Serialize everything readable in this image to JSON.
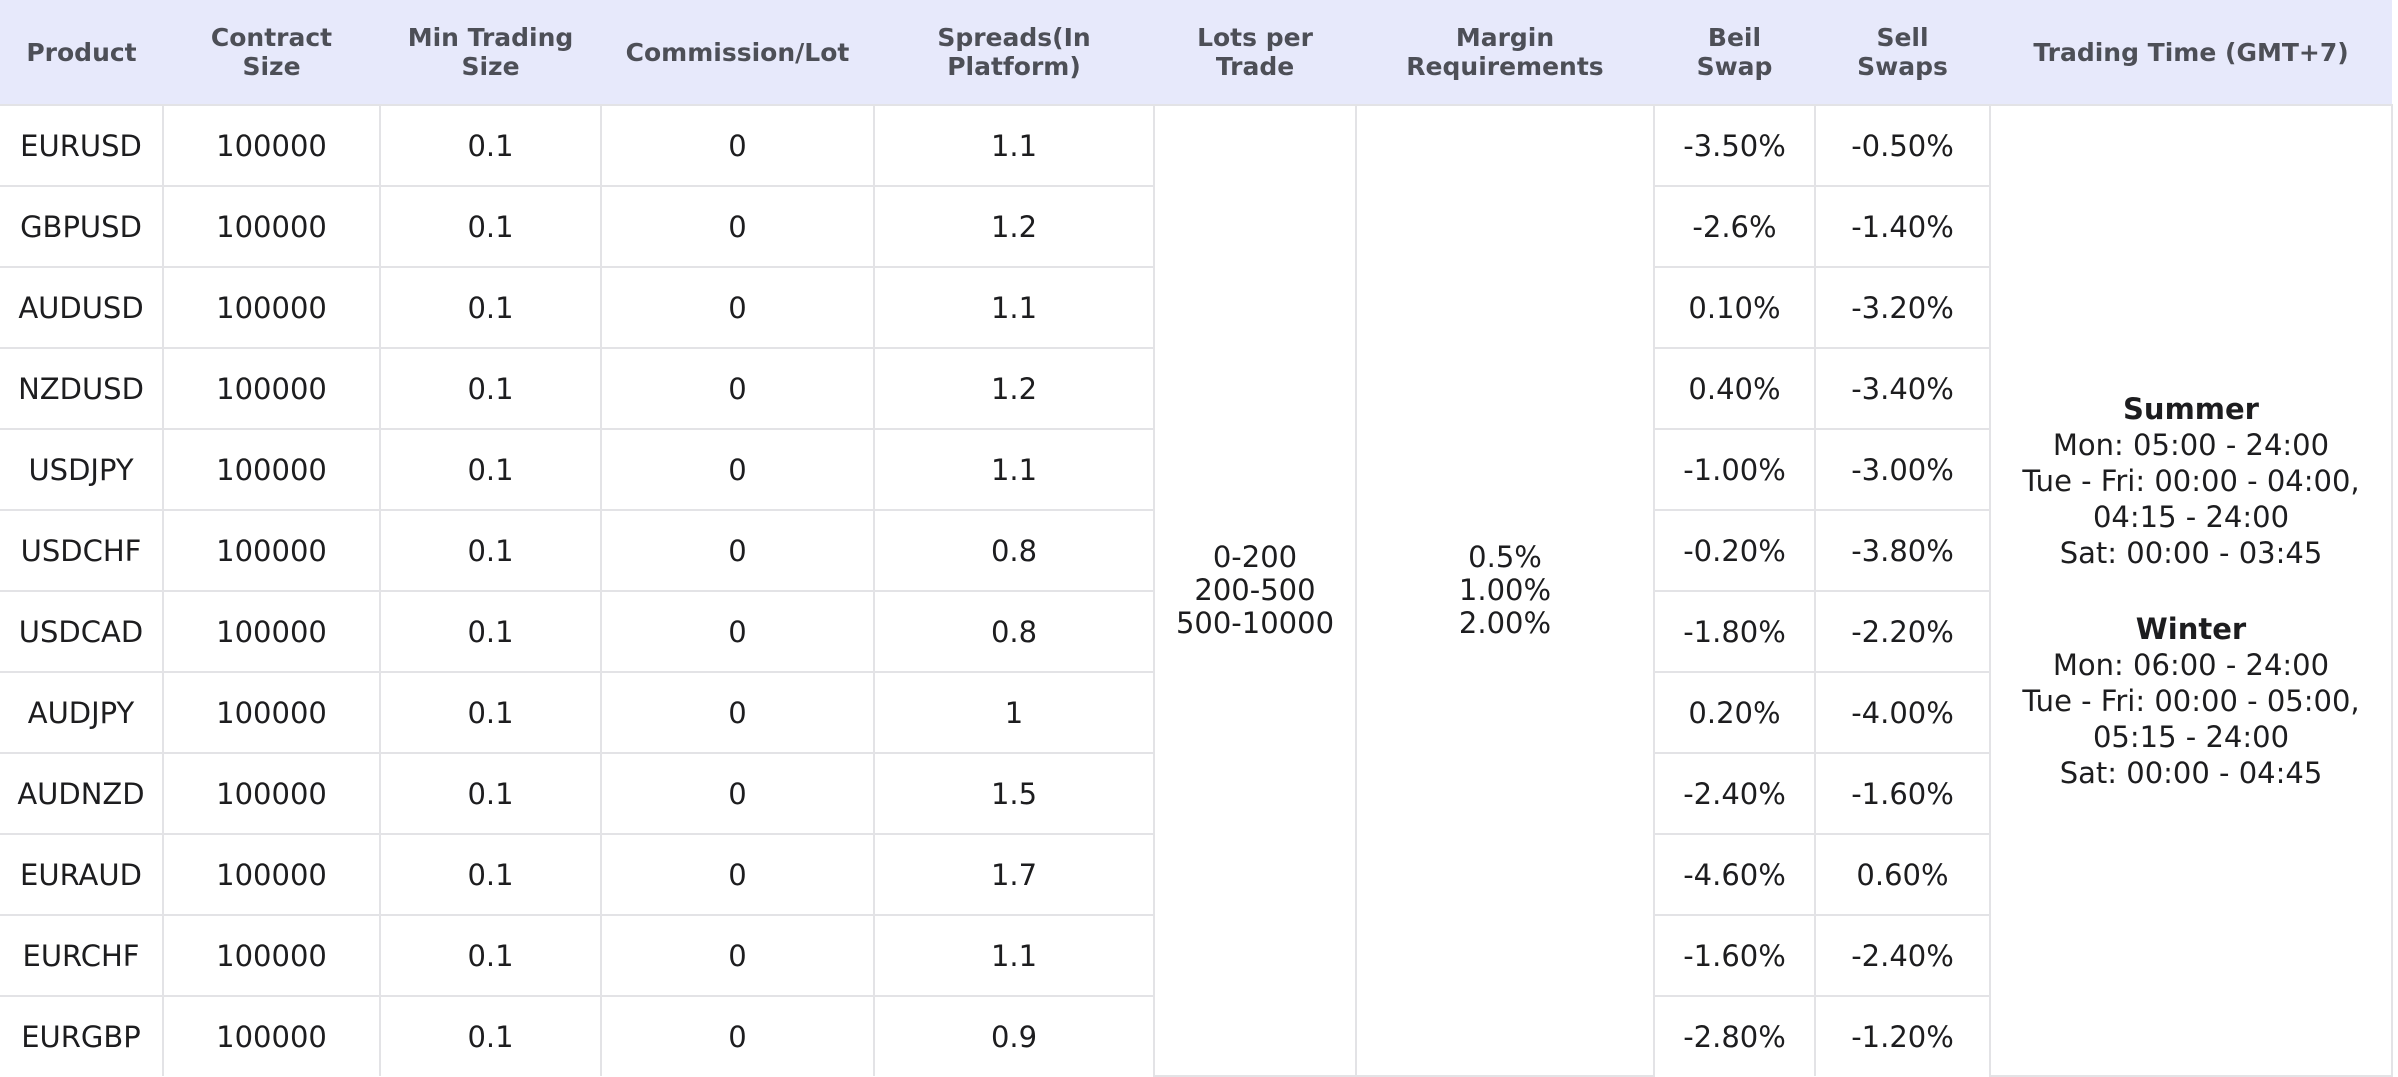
{
  "table": {
    "headers": [
      {
        "line1": "Product",
        "line2": ""
      },
      {
        "line1": "Contract",
        "line2": "Size"
      },
      {
        "line1": "Min Trading",
        "line2": "Size"
      },
      {
        "line1": "Commission/Lot",
        "line2": ""
      },
      {
        "line1": "Spreads(In",
        "line2": "Platform)"
      },
      {
        "line1": "Lots per",
        "line2": "Trade"
      },
      {
        "line1": "Margin",
        "line2": "Requirements"
      },
      {
        "line1": "Beil",
        "line2": "Swap"
      },
      {
        "line1": "Sell",
        "line2": "Swaps"
      },
      {
        "line1": "Trading Time (GMT+7)",
        "line2": ""
      }
    ],
    "rows": [
      {
        "product": "EURUSD",
        "contract": "100000",
        "min": "0.1",
        "commission": "0",
        "spread": "1.1",
        "buy_swap": "-3.50%",
        "sell_swap": "-0.50%"
      },
      {
        "product": "GBPUSD",
        "contract": "100000",
        "min": "0.1",
        "commission": "0",
        "spread": "1.2",
        "buy_swap": "-2.6%",
        "sell_swap": "-1.40%"
      },
      {
        "product": "AUDUSD",
        "contract": "100000",
        "min": "0.1",
        "commission": "0",
        "spread": "1.1",
        "buy_swap": "0.10%",
        "sell_swap": "-3.20%"
      },
      {
        "product": "NZDUSD",
        "contract": "100000",
        "min": "0.1",
        "commission": "0",
        "spread": "1.2",
        "buy_swap": "0.40%",
        "sell_swap": "-3.40%"
      },
      {
        "product": "USDJPY",
        "contract": "100000",
        "min": "0.1",
        "commission": "0",
        "spread": "1.1",
        "buy_swap": "-1.00%",
        "sell_swap": "-3.00%"
      },
      {
        "product": "USDCHF",
        "contract": "100000",
        "min": "0.1",
        "commission": "0",
        "spread": "0.8",
        "buy_swap": "-0.20%",
        "sell_swap": "-3.80%"
      },
      {
        "product": "USDCAD",
        "contract": "100000",
        "min": "0.1",
        "commission": "0",
        "spread": "0.8",
        "buy_swap": "-1.80%",
        "sell_swap": "-2.20%"
      },
      {
        "product": "AUDJPY",
        "contract": "100000",
        "min": "0.1",
        "commission": "0",
        "spread": "1",
        "buy_swap": "0.20%",
        "sell_swap": "-4.00%"
      },
      {
        "product": "AUDNZD",
        "contract": "100000",
        "min": "0.1",
        "commission": "0",
        "spread": "1.5",
        "buy_swap": "-2.40%",
        "sell_swap": "-1.60%"
      },
      {
        "product": "EURAUD",
        "contract": "100000",
        "min": "0.1",
        "commission": "0",
        "spread": "1.7",
        "buy_swap": "-4.60%",
        "sell_swap": "0.60%"
      },
      {
        "product": "EURCHF",
        "contract": "100000",
        "min": "0.1",
        "commission": "0",
        "spread": "1.1",
        "buy_swap": "-1.60%",
        "sell_swap": "-2.40%"
      },
      {
        "product": "EURGBP",
        "contract": "100000",
        "min": "0.1",
        "commission": "0",
        "spread": "0.9",
        "buy_swap": "-2.80%",
        "sell_swap": "-1.20%"
      }
    ],
    "lots_per_trade": [
      "0-200",
      "200-500",
      "500-10000"
    ],
    "margin_requirements": [
      "0.5%",
      "1.00%",
      "2.00%"
    ],
    "trading_time": {
      "summer": {
        "title": "Summer",
        "lines": [
          "Mon: 05:00 - 24:00",
          "Tue - Fri: 00:00 - 04:00,",
          "04:15 - 24:00",
          "Sat: 00:00 - 03:45"
        ]
      },
      "winter": {
        "title": "Winter",
        "lines": [
          "Mon: 06:00 - 24:00",
          "Tue - Fri: 00:00 - 05:00,",
          "05:15 - 24:00",
          "Sat: 00:00 - 04:45"
        ]
      }
    }
  },
  "colors": {
    "header_background": "#e7e9fb",
    "header_text": "#4d4f57",
    "grid_line": "#e3e3e6",
    "body_text": "#1d1d1f"
  }
}
